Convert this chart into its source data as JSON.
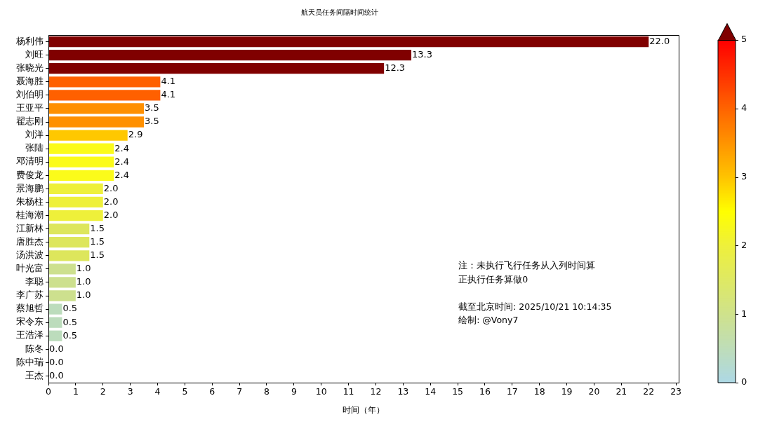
{
  "chart_data": {
    "type": "bar",
    "orientation": "horizontal",
    "title": "航天员任务间隔时间统计",
    "xlabel": "时间（年）",
    "categories": [
      "杨利伟",
      "刘旺",
      "张晓光",
      "聂海胜",
      "刘伯明",
      "王亚平",
      "翟志刚",
      "刘洋",
      "张陆",
      "邓清明",
      "费俊龙",
      "景海鹏",
      "朱杨柱",
      "桂海潮",
      "江新林",
      "唐胜杰",
      "汤洪波",
      "叶光富",
      "李聪",
      "李广苏",
      "蔡旭哲",
      "宋令东",
      "王浩泽",
      "陈冬",
      "陈中瑞",
      "王杰"
    ],
    "values": [
      22.0,
      13.3,
      12.3,
      4.1,
      4.1,
      3.5,
      3.5,
      2.9,
      2.4,
      2.4,
      2.4,
      2.0,
      2.0,
      2.0,
      1.5,
      1.5,
      1.5,
      1.0,
      1.0,
      1.0,
      0.5,
      0.5,
      0.5,
      0.0,
      0.0,
      0.0
    ],
    "colors": [
      "#800000",
      "#800000",
      "#800000",
      "#ff6000",
      "#ff6000",
      "#ff9000",
      "#ff9000",
      "#ffc800",
      "#fbfb1a",
      "#fbfb1a",
      "#fbfb1a",
      "#eef03a",
      "#eef03a",
      "#eef03a",
      "#dde65c",
      "#dde65c",
      "#dde65c",
      "#cde08e",
      "#cde08e",
      "#cde08e",
      "#bcdcbc",
      "#bcdcbc",
      "#bcdcbc",
      "#add8e6",
      "#add8e6",
      "#add8e6"
    ],
    "value_labels": [
      "22.0",
      "13.3",
      "12.3",
      "4.1",
      "4.1",
      "3.5",
      "3.5",
      "2.9",
      "2.4",
      "2.4",
      "2.4",
      "2.0",
      "2.0",
      "2.0",
      "1.5",
      "1.5",
      "1.5",
      "1.0",
      "1.0",
      "1.0",
      "0.5",
      "0.5",
      "0.5",
      "0.0",
      "0.0",
      "0.0"
    ],
    "xlim": [
      0,
      23.1
    ],
    "xticks": [
      0,
      1,
      2,
      3,
      4,
      5,
      6,
      7,
      8,
      9,
      10,
      11,
      12,
      13,
      14,
      15,
      16,
      17,
      18,
      19,
      20,
      21,
      22,
      23
    ],
    "clim": [
      0,
      5
    ],
    "cticks": [
      0,
      1,
      2,
      3,
      4,
      5
    ],
    "grid": false,
    "legend": false,
    "annotations": [
      "注：未执行飞行任务从入列时间算",
      "正执行任务算做0",
      "截至北京时间: 2025/10/21 10:14:35",
      "绘制: @Vony7"
    ]
  }
}
